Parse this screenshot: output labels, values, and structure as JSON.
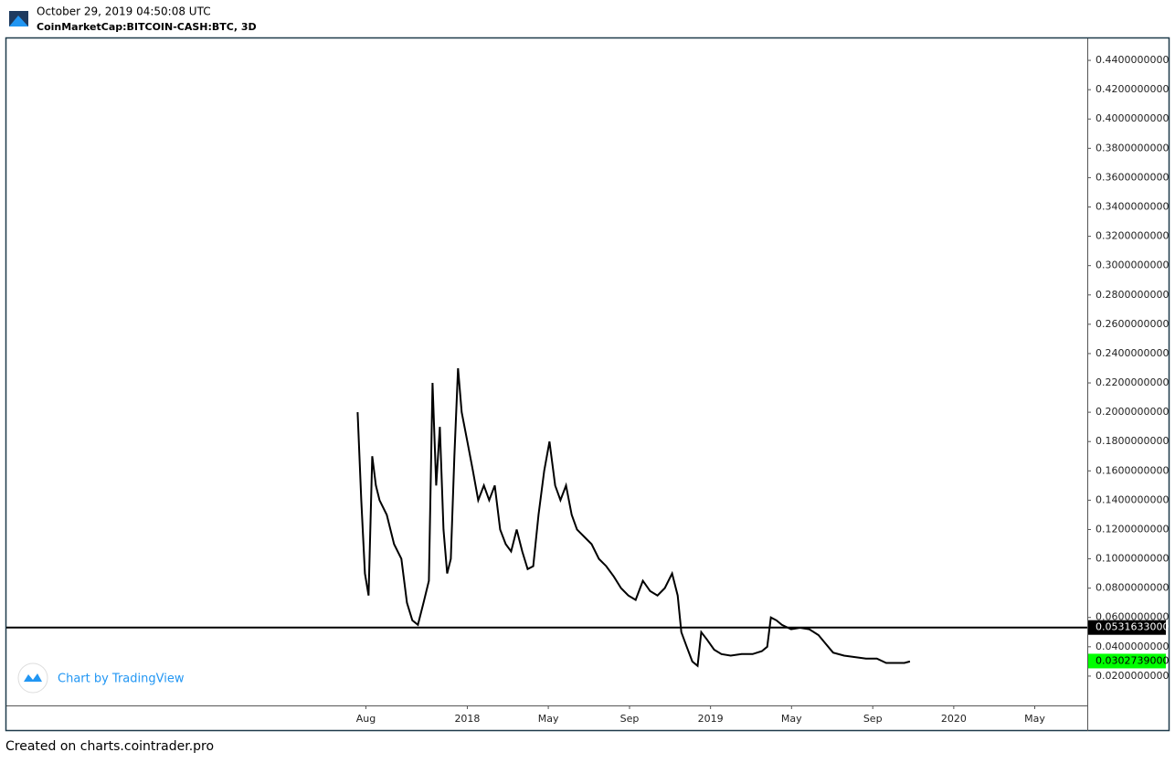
{
  "chart_data": {
    "type": "line",
    "title": "October 29, 2019 04:50:08 UTC",
    "subtitle": "CoinMarketCap:BITCOIN-CASH:BTC, 3D",
    "watermark": "Chart by TradingView",
    "footer": "Created on charts.cointrader.pro",
    "color": "#000000",
    "x": [
      2017.549,
      2017.564,
      2017.579,
      2017.594,
      2017.609,
      2017.624,
      2017.639,
      2017.669,
      2017.699,
      2017.729,
      2017.752,
      2017.774,
      2017.797,
      2017.82,
      2017.842,
      2017.857,
      2017.872,
      2017.887,
      2017.902,
      2017.917,
      2017.932,
      2017.947,
      2017.962,
      2017.977,
      2018.0,
      2018.023,
      2018.045,
      2018.068,
      2018.09,
      2018.113,
      2018.135,
      2018.158,
      2018.18,
      2018.203,
      2018.226,
      2018.248,
      2018.271,
      2018.293,
      2018.316,
      2018.338,
      2018.361,
      2018.383,
      2018.406,
      2018.429,
      2018.451,
      2018.481,
      2018.511,
      2018.541,
      2018.571,
      2018.602,
      2018.632,
      2018.662,
      2018.692,
      2018.722,
      2018.752,
      2018.782,
      2018.812,
      2018.842,
      2018.865,
      2018.88,
      2018.902,
      2018.925,
      2018.947,
      2018.962,
      2018.985,
      2019.015,
      2019.045,
      2019.083,
      2019.128,
      2019.173,
      2019.211,
      2019.233,
      2019.248,
      2019.271,
      2019.293,
      2019.331,
      2019.368,
      2019.406,
      2019.444,
      2019.474,
      2019.504,
      2019.549,
      2019.594,
      2019.639,
      2019.684,
      2019.722,
      2019.759,
      2019.797,
      2019.82
    ],
    "values": [
      0.2,
      0.14,
      0.09,
      0.075,
      0.17,
      0.15,
      0.14,
      0.13,
      0.11,
      0.1,
      0.07,
      0.058,
      0.055,
      0.07,
      0.085,
      0.22,
      0.15,
      0.19,
      0.12,
      0.09,
      0.1,
      0.17,
      0.23,
      0.2,
      0.18,
      0.16,
      0.14,
      0.15,
      0.14,
      0.15,
      0.12,
      0.11,
      0.105,
      0.12,
      0.105,
      0.093,
      0.095,
      0.13,
      0.16,
      0.18,
      0.15,
      0.14,
      0.15,
      0.13,
      0.12,
      0.115,
      0.11,
      0.1,
      0.095,
      0.088,
      0.08,
      0.075,
      0.072,
      0.085,
      0.078,
      0.075,
      0.08,
      0.09,
      0.075,
      0.05,
      0.04,
      0.03,
      0.027,
      0.05,
      0.045,
      0.038,
      0.035,
      0.034,
      0.035,
      0.035,
      0.037,
      0.04,
      0.06,
      0.058,
      0.055,
      0.052,
      0.053,
      0.052,
      0.048,
      0.042,
      0.036,
      0.034,
      0.033,
      0.032,
      0.032,
      0.029,
      0.029,
      0.029,
      0.03
    ],
    "xlim": [
      2016.105,
      2020.549
    ],
    "xticks": [
      {
        "value": 2017.583,
        "label": "Aug"
      },
      {
        "value": 2018,
        "label": "2018"
      },
      {
        "value": 2018.333,
        "label": "May"
      },
      {
        "value": 2018.667,
        "label": "Sep"
      },
      {
        "value": 2019,
        "label": "2019"
      },
      {
        "value": 2019.333,
        "label": "May"
      },
      {
        "value": 2019.667,
        "label": "Sep"
      },
      {
        "value": 2020,
        "label": "2020"
      },
      {
        "value": 2020.333,
        "label": "May"
      }
    ],
    "ylim": [
      0,
      0.455
    ],
    "yticks": [
      {
        "value": 0.02,
        "label": "0.0200000000"
      },
      {
        "value": 0.04,
        "label": "0.0400000000"
      },
      {
        "value": 0.06,
        "label": "0.0600000000"
      },
      {
        "value": 0.08,
        "label": "0.0800000000"
      },
      {
        "value": 0.1,
        "label": "0.1000000000"
      },
      {
        "value": 0.12,
        "label": "0.1200000000"
      },
      {
        "value": 0.14,
        "label": "0.1400000000"
      },
      {
        "value": 0.16,
        "label": "0.1600000000"
      },
      {
        "value": 0.18,
        "label": "0.1800000000"
      },
      {
        "value": 0.2,
        "label": "0.2000000000"
      },
      {
        "value": 0.22,
        "label": "0.2200000000"
      },
      {
        "value": 0.24,
        "label": "0.2400000000"
      },
      {
        "value": 0.26,
        "label": "0.2600000000"
      },
      {
        "value": 0.28,
        "label": "0.2800000000"
      },
      {
        "value": 0.3,
        "label": "0.3000000000"
      },
      {
        "value": 0.32,
        "label": "0.3200000000"
      },
      {
        "value": 0.34,
        "label": "0.3400000000"
      },
      {
        "value": 0.36,
        "label": "0.3600000000"
      },
      {
        "value": 0.38,
        "label": "0.3800000000"
      },
      {
        "value": 0.4,
        "label": "0.4000000000"
      },
      {
        "value": 0.42,
        "label": "0.4200000000"
      },
      {
        "value": 0.44,
        "label": "0.4400000000"
      }
    ],
    "price_lines": [
      {
        "value": 0.0531633,
        "label": "0.0531633000",
        "color": "#000000",
        "line": true
      },
      {
        "value": 0.0302739,
        "label": "0.0302739000",
        "color": "#00ff00",
        "line": false
      }
    ]
  }
}
